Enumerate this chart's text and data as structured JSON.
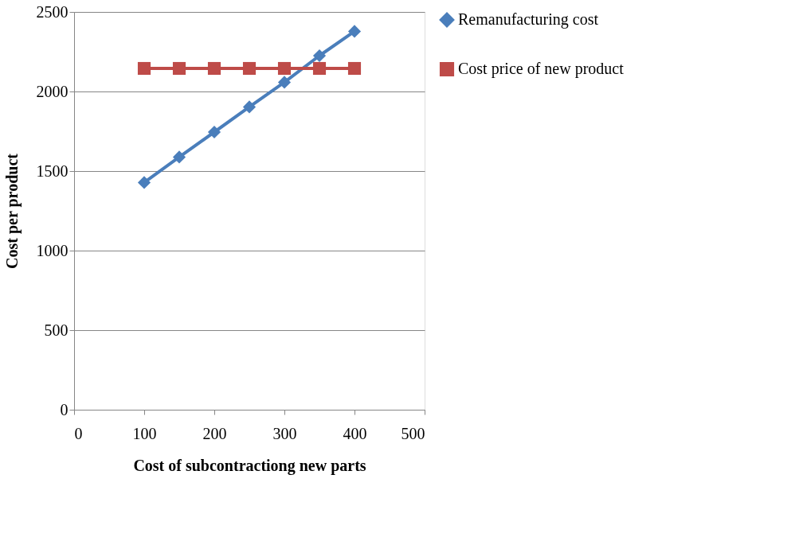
{
  "chart_data": {
    "type": "line",
    "xlabel": "Cost of subcontractiong new parts",
    "ylabel": "Cost per product",
    "x": [
      100,
      150,
      200,
      250,
      300,
      350,
      400
    ],
    "series": [
      {
        "name": "Remanufacturing cost",
        "color": "#4a7ebb",
        "marker": "diamond",
        "values": [
          1428,
          1588,
          1745,
          1903,
          2058,
          2225,
          2378
        ]
      },
      {
        "name": "Cost price of new product",
        "color": "#be4b48",
        "marker": "square",
        "values": [
          2145,
          2145,
          2145,
          2145,
          2145,
          2145,
          2145
        ]
      }
    ],
    "xlim": [
      0,
      500
    ],
    "xticks": [
      0,
      100,
      200,
      300,
      400,
      500
    ],
    "ylim": [
      0,
      2500
    ],
    "yticks": [
      0,
      500,
      1000,
      1500,
      2000,
      2500
    ],
    "grid": "y",
    "legend": "right",
    "line_style": "solid"
  }
}
